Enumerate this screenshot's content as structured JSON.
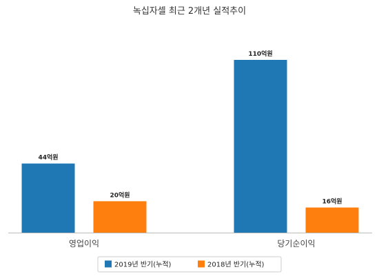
{
  "chart_data": {
    "type": "bar",
    "title": "녹십자셀 최근 2개년 실적추이",
    "xlabel": "",
    "ylabel": "",
    "categories": [
      "영업이익",
      "당기순이익"
    ],
    "series": [
      {
        "name": "2019년 반기(누적)",
        "values": [
          44,
          110
        ],
        "labels": [
          "44억원",
          "110억원"
        ],
        "color": "#1f77b4"
      },
      {
        "name": "2018년 반기(누적)",
        "values": [
          20,
          16
        ],
        "labels": [
          "20억원",
          "16억원"
        ],
        "color": "#ff7f0e"
      }
    ],
    "ylim": [
      0,
      110
    ],
    "grid": false,
    "legend_position": "bottom"
  }
}
